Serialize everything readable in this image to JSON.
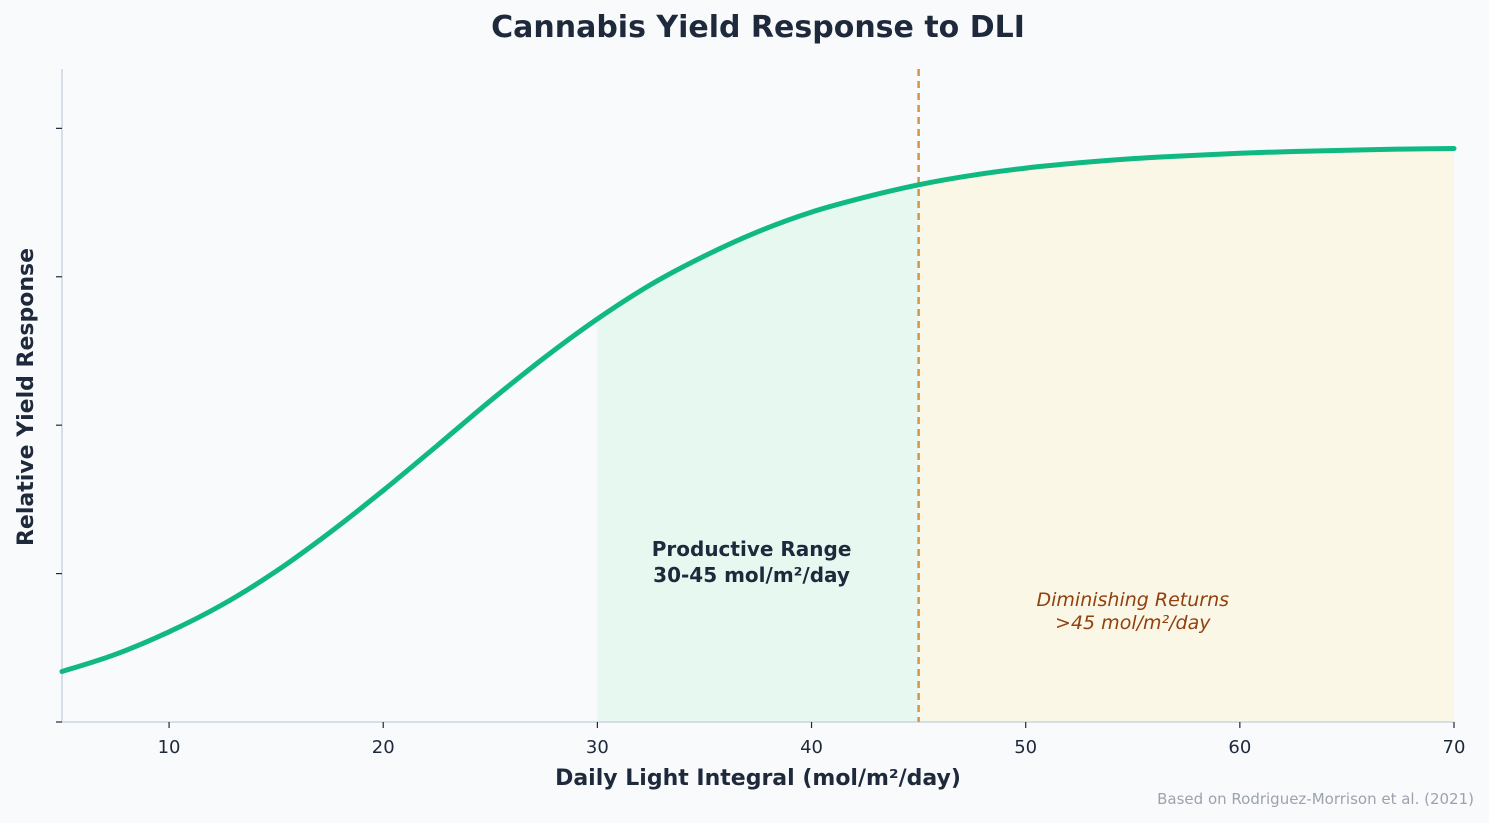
{
  "chart_data": {
    "type": "line",
    "title": "Cannabis Yield Response to DLI",
    "xlabel": "Daily Light Integral (mol/m²/day)",
    "ylabel": "Relative Yield Response",
    "xlim": [
      5,
      70
    ],
    "ylim": [
      0,
      1.1
    ],
    "xticks": [
      "10",
      "20",
      "30",
      "40",
      "50",
      "60",
      "70"
    ],
    "xtick_values": [
      10,
      20,
      30,
      40,
      50,
      60,
      70
    ],
    "ytick_values": [
      0,
      0.25,
      0.5,
      0.75,
      1.0
    ],
    "ytick_labels_shown": false,
    "grid": false,
    "series": [
      {
        "color": "#10b981",
        "x": [
          5,
          7.5,
          10,
          12.5,
          15,
          17.5,
          20,
          22.5,
          25,
          27.5,
          30,
          32.5,
          35,
          37.5,
          40,
          42.5,
          45,
          47.5,
          50,
          52.5,
          55,
          57.5,
          60,
          62.5,
          65,
          67.5,
          70
        ],
        "y": [
          0.085,
          0.114,
          0.152,
          0.198,
          0.254,
          0.319,
          0.39,
          0.465,
          0.541,
          0.613,
          0.679,
          0.737,
          0.785,
          0.826,
          0.859,
          0.884,
          0.905,
          0.921,
          0.933,
          0.942,
          0.949,
          0.954,
          0.958,
          0.961,
          0.963,
          0.965,
          0.966
        ]
      }
    ],
    "regions": [
      {
        "x_start": 30,
        "x_end": 45,
        "color": "#e6f8f0"
      },
      {
        "x_start": 45,
        "x_end": 70,
        "color": "#faf7e6"
      }
    ],
    "vline": {
      "x": 45,
      "color": "#d4954a",
      "style": "dashed"
    },
    "annotations": [
      {
        "lines": [
          "Productive Range",
          "30-45 mol/m²/day"
        ],
        "x": 37.2,
        "y": 0.28,
        "style": "bold",
        "color": "#1e293b"
      },
      {
        "lines": [
          "Diminishing Returns",
          ">45 mol/m²/day"
        ],
        "x": 55,
        "y": 0.195,
        "style": "italic",
        "color": "#92400e"
      }
    ],
    "source": "Based on Rodriguez-Morrison et al. (2021)"
  }
}
